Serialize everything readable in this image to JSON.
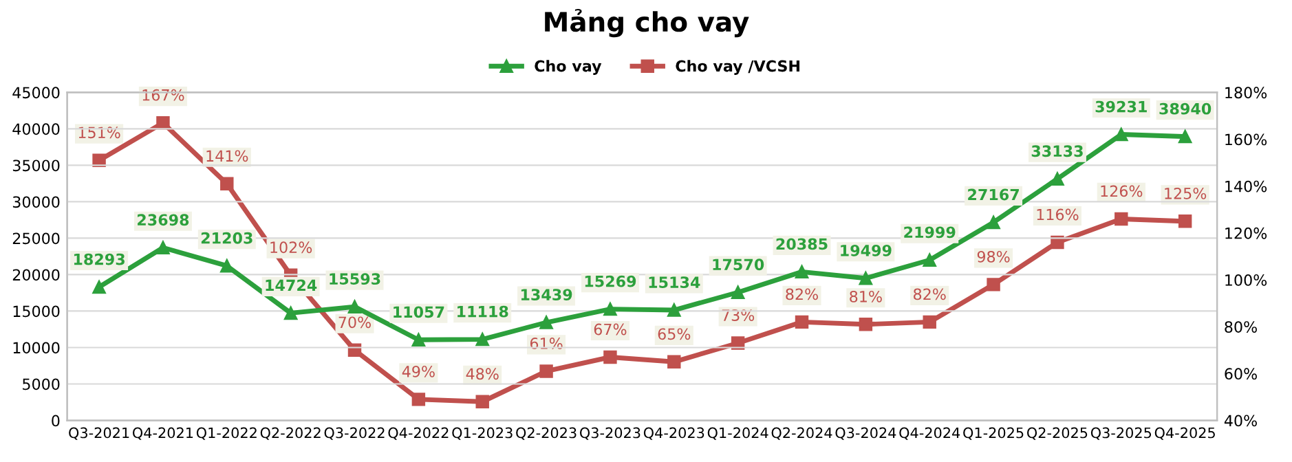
{
  "chart_data": {
    "type": "line",
    "title": "Mảng cho vay",
    "categories": [
      "Q3-2021",
      "Q4-2021",
      "Q1-2022",
      "Q2-2022",
      "Q3-2022",
      "Q4-2022",
      "Q1-2023",
      "Q2-2023",
      "Q3-2023",
      "Q4-2023",
      "Q1-2024",
      "Q2-2024",
      "Q3-2024",
      "Q4-2024",
      "Q1-2025",
      "Q2-2025",
      "Q3-2025",
      "Q4-2025"
    ],
    "series": [
      {
        "name": "Cho vay",
        "color": "#2ca03c",
        "marker": "triangle",
        "values": [
          18293,
          23698,
          21203,
          14724,
          15593,
          11057,
          11118,
          13439,
          15269,
          15134,
          17570,
          20385,
          19499,
          21999,
          27167,
          33133,
          39231,
          38940
        ],
        "value_labels": [
          "18293",
          "23698",
          "21203",
          "14724",
          "15593",
          "11057",
          "11118",
          "13439",
          "15269",
          "15134",
          "17570",
          "20385",
          "19499",
          "21999",
          "27167",
          "33133",
          "39231",
          "38940"
        ]
      },
      {
        "name": "Cho vay /VCSH",
        "color": "#c0504d",
        "marker": "square",
        "axis": "y2",
        "values": [
          151,
          167,
          141,
          102,
          70,
          49,
          48,
          61,
          67,
          65,
          73,
          82,
          81,
          82,
          98,
          116,
          126,
          125
        ],
        "value_labels": [
          "151%",
          "167%",
          "141%",
          "102%",
          "70%",
          "49%",
          "48%",
          "61%",
          "67%",
          "65%",
          "73%",
          "82%",
          "81%",
          "82%",
          "98%",
          "116%",
          "126%",
          "125%"
        ]
      }
    ],
    "ylim": [
      0,
      45000
    ],
    "yticks": [
      0,
      5000,
      10000,
      15000,
      20000,
      25000,
      30000,
      35000,
      40000,
      45000
    ],
    "y2lim": [
      40,
      180
    ],
    "y2ticks": [
      {
        "value": 40,
        "label": "40%"
      },
      {
        "value": 60,
        "label": "60%"
      },
      {
        "value": 80,
        "label": "80%"
      },
      {
        "value": 100,
        "label": "100%"
      },
      {
        "value": 120,
        "label": "120%"
      },
      {
        "value": 140,
        "label": "140%"
      },
      {
        "value": 160,
        "label": "160%"
      },
      {
        "value": 180,
        "label": "180%"
      }
    ],
    "grid": "y",
    "legend": "top",
    "line_style": "solid"
  }
}
